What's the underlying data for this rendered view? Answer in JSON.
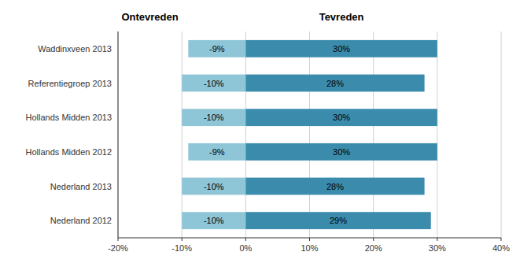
{
  "chart_data": {
    "type": "bar",
    "orientation": "horizontal",
    "categories": [
      "Nederland 2012",
      "Nederland 2013",
      "Hollands Midden 2012",
      "Hollands Midden 2013",
      "Referentiegroep 2013",
      "Waddinxveen 2013"
    ],
    "series": [
      {
        "color": "#8ec6d8",
        "values": [
          -10,
          -10,
          -9,
          -10,
          -10,
          -9
        ],
        "value_labels": [
          "-10%",
          "-10%",
          "-9%",
          "-10%",
          "-10%",
          "-9%"
        ]
      },
      {
        "color": "#3a8bac",
        "values": [
          29,
          28,
          30,
          30,
          28,
          30
        ],
        "value_labels": [
          "29%",
          "28%",
          "30%",
          "30%",
          "28%",
          "30%"
        ]
      }
    ],
    "xlim": [
      -20,
      40
    ],
    "xticks": [
      {
        "value": -20,
        "label": "-20%"
      },
      {
        "value": -10,
        "label": "-10%"
      },
      {
        "value": 0,
        "label": "0%"
      },
      {
        "value": 10,
        "label": "10%"
      },
      {
        "value": 20,
        "label": "20%"
      },
      {
        "value": 30,
        "label": "30%"
      },
      {
        "value": 40,
        "label": "40%"
      }
    ],
    "annotations": [
      {
        "text": "Ontevreden",
        "x": -15
      },
      {
        "text": "Tevreden",
        "x": 15
      }
    ],
    "grid": true,
    "data_labels": true
  }
}
